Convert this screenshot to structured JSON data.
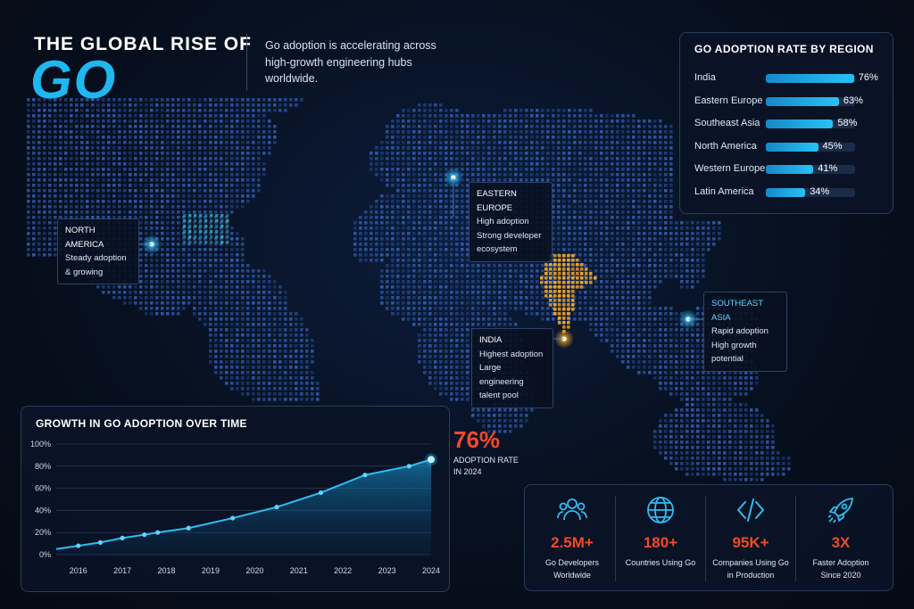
{
  "header": {
    "title_line1": "THE GLOBAL RISE OF",
    "title_go": "GO",
    "subtitle": "Go adoption is accelerating across high-growth engineering hubs worldwide."
  },
  "region_panel": {
    "title": "GO ADOPTION RATE BY REGION",
    "rows": [
      {
        "label": "India",
        "value": 76,
        "value_label": "76%"
      },
      {
        "label": "Eastern Europe",
        "value": 63,
        "value_label": "63%"
      },
      {
        "label": "Southeast Asia",
        "value": 58,
        "value_label": "58%"
      },
      {
        "label": "North America",
        "value": 45,
        "value_label": "45%"
      },
      {
        "label": "Western Europe",
        "value": 41,
        "value_label": "41%"
      },
      {
        "label": "Latin America",
        "value": 34,
        "value_label": "34%"
      }
    ]
  },
  "callouts": {
    "north_america": {
      "title": "NORTH AMERICA",
      "lines": [
        "Steady adoption",
        "& growing"
      ]
    },
    "eastern_europe": {
      "title": "EASTERN EUROPE",
      "lines": [
        "High adoption",
        "Strong developer",
        "ecosystem"
      ]
    },
    "southeast_asia": {
      "title": "SOUTHEAST ASIA",
      "lines": [
        "Rapid adoption",
        "High growth",
        "potential"
      ]
    },
    "india": {
      "title": "INDIA",
      "lines": [
        "Highest adoption",
        "Large engineering",
        "talent pool"
      ]
    }
  },
  "highlight": {
    "value": "76%",
    "label_line1": "ADOPTION RATE",
    "label_line2": "IN 2024"
  },
  "stats": [
    {
      "icon": "users-icon",
      "value": "2.5M+",
      "line1": "Go Developers",
      "line2": "Worldwide"
    },
    {
      "icon": "globe-icon",
      "value": "180+",
      "line1": "Countries Using Go",
      "line2": ""
    },
    {
      "icon": "code-icon",
      "value": "95K+",
      "line1": "Companies Using Go",
      "line2": "in Production"
    },
    {
      "icon": "rocket-icon",
      "value": "3X",
      "line1": "Faster Adoption",
      "line2": "Since 2020"
    }
  ],
  "colors": {
    "accent": "#1fb7f0",
    "highlight": "#f04a2b",
    "india": "#f5a623",
    "map_dots": "#2f5fb8"
  },
  "chart_data": [
    {
      "type": "area",
      "title": "GROWTH IN GO ADOPTION OVER TIME",
      "x_tick_labels": [
        "2016",
        "2017",
        "2018",
        "2019",
        "2020",
        "2021",
        "2022",
        "2023",
        "2024"
      ],
      "y_tick_labels": [
        "0%",
        "20%",
        "40%",
        "60%",
        "80%",
        "100%"
      ],
      "ylim": [
        0,
        100
      ],
      "xlim": [
        2015.5,
        2024
      ],
      "grid": true,
      "series": [
        {
          "x": [
            2015.5,
            2016,
            2016.5,
            2017,
            2017.5,
            2017.8,
            2018.5,
            2019.5,
            2020.5,
            2021.5,
            2022.5,
            2023.5,
            2024
          ],
          "y": [
            5,
            8,
            11,
            15,
            18,
            20,
            24,
            33,
            43,
            56,
            72,
            80,
            86
          ]
        }
      ]
    },
    {
      "type": "bar",
      "title": "GO ADOPTION RATE BY REGION",
      "categories": [
        "India",
        "Eastern Europe",
        "Southeast Asia",
        "North America",
        "Western Europe",
        "Latin America"
      ],
      "values": [
        76,
        63,
        58,
        45,
        41,
        34
      ],
      "ylim": [
        0,
        100
      ]
    }
  ]
}
